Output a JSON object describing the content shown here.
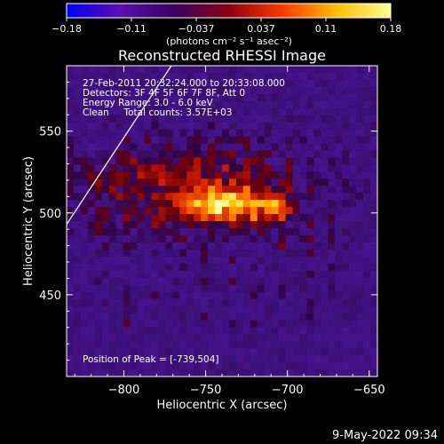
{
  "chart_data": {
    "type": "heatmap",
    "title": "Reconstructed RHESSI Image",
    "xlabel": "Heliocentric X (arcsec)",
    "ylabel": "Heliocentric Y (arcsec)",
    "xlim": [
      -835,
      -645
    ],
    "ylim": [
      400,
      590
    ],
    "x_ticks": [
      -800,
      -750,
      -700,
      -650
    ],
    "y_ticks": [
      450,
      500,
      550
    ],
    "colorbar": {
      "range": [
        -0.18,
        0.18
      ],
      "ticks": [
        "-0.18",
        "-0.11",
        "-0.037",
        "0.037",
        "0.11",
        "0.18"
      ],
      "unit_text": "(photons cm⁻² s⁻¹ asec⁻²)",
      "colors": [
        "#0000ff",
        "#5e0cb0",
        "#3a0060",
        "#8a0010",
        "#ff3a00",
        "#ffbf00",
        "#ffff90"
      ]
    },
    "annotations": [
      "27-Feb-2011 20:32:24.000 to 20:33:08.000",
      "Detectors: 3F 4F 5F 6F 7F 8F, Att 0",
      "Energy Range: 3.0 - 6.0 keV",
      "Clean     Total counts: 3.57E+03"
    ],
    "peak_text": "Position of Peak = [-739,504]",
    "peak": {
      "x": -739,
      "y": 504
    },
    "sources": [
      {
        "x": -742,
        "y": 505,
        "sx": 16,
        "sy": 7,
        "amp": 0.17
      },
      {
        "x": -710,
        "y": 504,
        "sx": 10,
        "sy": 6,
        "amp": 0.12
      },
      {
        "x": -760,
        "y": 518,
        "sx": 55,
        "sy": 20,
        "amp": 0.09
      }
    ],
    "limb_line": {
      "x": [
        -835,
        -771
      ],
      "y": [
        493,
        590
      ]
    },
    "colormap": "hot on purple background"
  },
  "footer": {
    "timestamp": "9-May-2022 09:34"
  }
}
